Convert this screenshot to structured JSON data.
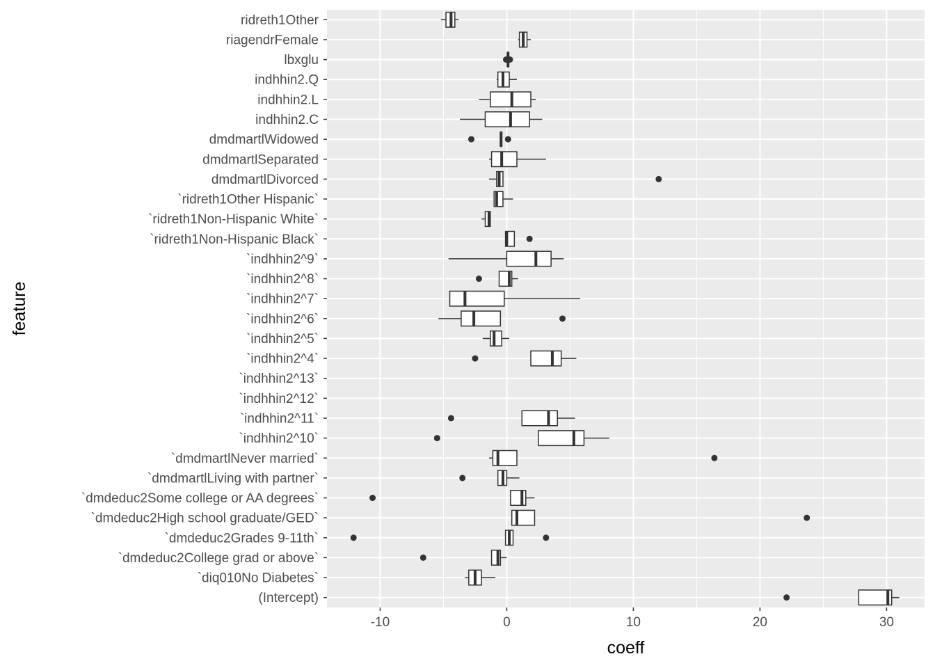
{
  "chart_data": {
    "type": "boxplot",
    "orientation": "horizontal",
    "xlabel": "coeff",
    "ylabel": "feature",
    "xlim": [
      -14.2,
      33.0
    ],
    "x_ticks": [
      -10,
      0,
      10,
      20,
      30
    ],
    "x_tick_labels": [
      "-10",
      "0",
      "10",
      "20",
      "30"
    ],
    "grid": true,
    "legend": "none",
    "colors": {
      "panel": "#ebebeb",
      "grid": "#ffffff",
      "box_fill": "#ffffff",
      "box_line": "#333333",
      "tick_text": "#4d4d4d"
    },
    "categories": [
      "ridreth1Other",
      "riagendrFemale",
      "lbxglu",
      "indhhin2.Q",
      "indhhin2.L",
      "indhhin2.C",
      "dmdmartlWidowed",
      "dmdmartlSeparated",
      "dmdmartlDivorced",
      "`ridreth1Other Hispanic`",
      "`ridreth1Non-Hispanic White`",
      "`ridreth1Non-Hispanic Black`",
      "`indhhin2^9`",
      "`indhhin2^8`",
      "`indhhin2^7`",
      "`indhhin2^6`",
      "`indhhin2^5`",
      "`indhhin2^4`",
      "`indhhin2^13`",
      "`indhhin2^12`",
      "`indhhin2^11`",
      "`indhhin2^10`",
      "`dmdmartlNever married`",
      "`dmdmartlLiving with partner`",
      "`dmdeduc2Some college or AA degrees`",
      "`dmdeduc2High school graduate/GED`",
      "`dmdeduc2Grades 9-11th`",
      "`dmdeduc2College grad or above`",
      "`diq010No Diabetes`",
      "(Intercept)"
    ],
    "boxes": [
      {
        "min": -5.2,
        "q1": -4.8,
        "median": -4.4,
        "q3": -4.1,
        "max": -3.8,
        "outliers": []
      },
      {
        "min": 0.9,
        "q1": 1.0,
        "median": 1.3,
        "q3": 1.6,
        "max": 1.9,
        "outliers": []
      },
      {
        "min": 0.05,
        "q1": 0.08,
        "median": 0.1,
        "q3": 0.12,
        "max": 0.15,
        "outliers": [
          -0.05,
          0.25
        ]
      },
      {
        "min": -0.8,
        "q1": -0.7,
        "median": -0.3,
        "q3": 0.2,
        "max": 0.8,
        "outliers": []
      },
      {
        "min": -2.2,
        "q1": -1.3,
        "median": 0.4,
        "q3": 1.9,
        "max": 2.3,
        "outliers": []
      },
      {
        "min": -3.7,
        "q1": -1.7,
        "median": 0.3,
        "q3": 1.8,
        "max": 2.8,
        "outliers": []
      },
      {
        "min": -0.45,
        "q1": -0.45,
        "median": -0.45,
        "q3": -0.45,
        "max": -0.45,
        "outliers": [
          -2.8,
          0.1
        ]
      },
      {
        "min": -1.4,
        "q1": -1.2,
        "median": -0.4,
        "q3": 0.8,
        "max": 3.1,
        "outliers": []
      },
      {
        "min": -1.4,
        "q1": -0.8,
        "median": -0.6,
        "q3": -0.3,
        "max": -0.3,
        "outliers": [
          12.0
        ]
      },
      {
        "min": -1.0,
        "q1": -1.0,
        "median": -0.8,
        "q3": -0.3,
        "max": 0.5,
        "outliers": []
      },
      {
        "min": -2.0,
        "q1": -1.7,
        "median": -1.4,
        "q3": -1.3,
        "max": -1.3,
        "outliers": []
      },
      {
        "min": -0.1,
        "q1": -0.1,
        "median": 0.0,
        "q3": 0.6,
        "max": 0.6,
        "outliers": [
          1.8
        ]
      },
      {
        "min": -4.6,
        "q1": 0.0,
        "median": 2.3,
        "q3": 3.5,
        "max": 4.5,
        "outliers": []
      },
      {
        "min": -0.6,
        "q1": -0.6,
        "median": 0.2,
        "q3": 0.4,
        "max": 0.9,
        "outliers": [
          -2.2
        ]
      },
      {
        "min": -4.5,
        "q1": -4.5,
        "median": -3.3,
        "q3": -0.2,
        "max": 5.8,
        "outliers": []
      },
      {
        "min": -5.4,
        "q1": -3.6,
        "median": -2.6,
        "q3": -0.5,
        "max": -0.5,
        "outliers": [
          4.4
        ]
      },
      {
        "min": -1.9,
        "q1": -1.3,
        "median": -1.0,
        "q3": -0.4,
        "max": 0.2,
        "outliers": []
      },
      {
        "min": 1.9,
        "q1": 1.9,
        "median": 3.6,
        "q3": 4.3,
        "max": 5.5,
        "outliers": [
          -2.5
        ]
      },
      {
        "min": null,
        "q1": null,
        "median": null,
        "q3": null,
        "max": null,
        "outliers": []
      },
      {
        "min": null,
        "q1": null,
        "median": null,
        "q3": null,
        "max": null,
        "outliers": []
      },
      {
        "min": 1.2,
        "q1": 1.2,
        "median": 3.3,
        "q3": 4.0,
        "max": 5.4,
        "outliers": [
          -4.4
        ]
      },
      {
        "min": 2.5,
        "q1": 2.5,
        "median": 5.3,
        "q3": 6.1,
        "max": 8.1,
        "outliers": [
          -5.5
        ]
      },
      {
        "min": -1.4,
        "q1": -1.1,
        "median": -0.7,
        "q3": 0.8,
        "max": 0.8,
        "outliers": [
          16.4
        ]
      },
      {
        "min": -0.7,
        "q1": -0.7,
        "median": -0.3,
        "q3": 0.0,
        "max": 1.0,
        "outliers": [
          -3.5
        ]
      },
      {
        "min": 0.3,
        "q1": 0.3,
        "median": 1.2,
        "q3": 1.5,
        "max": 2.2,
        "outliers": [
          -10.6
        ]
      },
      {
        "min": 0.4,
        "q1": 0.4,
        "median": 0.8,
        "q3": 2.2,
        "max": 2.2,
        "outliers": [
          23.7
        ]
      },
      {
        "min": -0.1,
        "q1": -0.1,
        "median": 0.2,
        "q3": 0.5,
        "max": 0.5,
        "outliers": [
          -12.1,
          3.1
        ]
      },
      {
        "min": -1.2,
        "q1": -1.2,
        "median": -0.7,
        "q3": -0.5,
        "max": 0.0,
        "outliers": [
          -6.6
        ]
      },
      {
        "min": -3.3,
        "q1": -3.0,
        "median": -2.5,
        "q3": -2.0,
        "max": -0.9,
        "outliers": []
      },
      {
        "min": 27.8,
        "q1": 27.8,
        "median": 30.1,
        "q3": 30.4,
        "max": 31.0,
        "outliers": [
          22.1
        ]
      }
    ]
  }
}
